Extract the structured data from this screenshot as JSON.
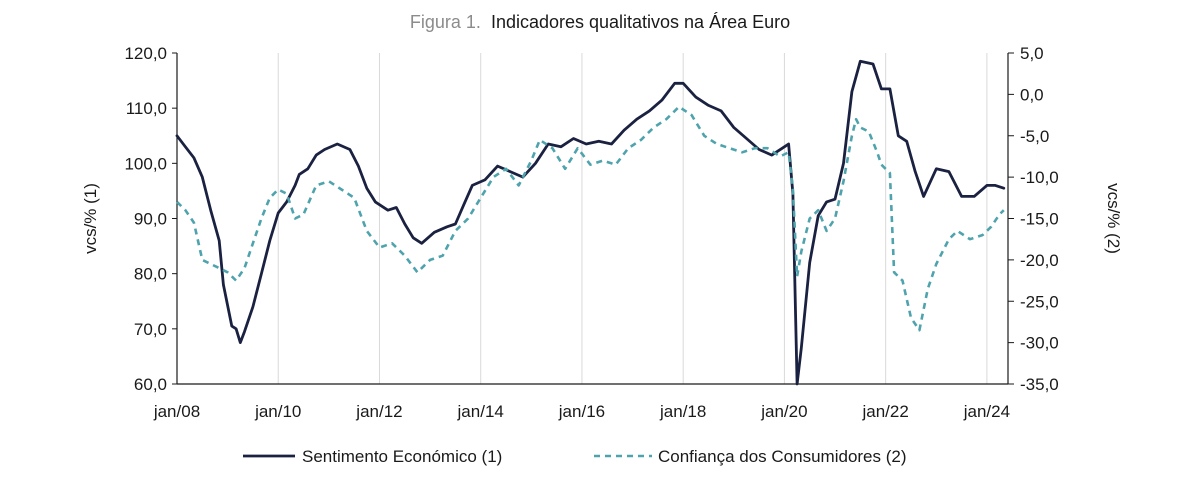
{
  "figure": {
    "prefix": "Figura 1.",
    "title": "Indicadores qualitativos na Área Euro"
  },
  "chart_data": {
    "type": "line",
    "x_tick_labels": [
      "jan/08",
      "jan/10",
      "jan/12",
      "jan/14",
      "jan/16",
      "jan/18",
      "jan/20",
      "jan/22",
      "jan/24"
    ],
    "left_axis": {
      "label": "vcs/% (1)",
      "range": [
        60,
        120
      ],
      "ticks": [
        "60,0",
        "70,0",
        "80,0",
        "90,0",
        "100,0",
        "110,0",
        "120,0"
      ]
    },
    "right_axis": {
      "label": "vcs/% (2)",
      "range": [
        -35,
        5
      ],
      "ticks": [
        "-35,0",
        "-30,0",
        "-25,0",
        "-20,0",
        "-15,0",
        "-10,0",
        "-5,0",
        "0,0",
        "5,0"
      ]
    },
    "grid": "vertical",
    "legend_position": "bottom",
    "series": [
      {
        "name": "Sentimento Económico (1)",
        "axis": "left",
        "color": "#1b2140",
        "style": "solid",
        "points": [
          [
            "2008-01",
            105.0
          ],
          [
            "2008-03",
            103.0
          ],
          [
            "2008-05",
            101.0
          ],
          [
            "2008-07",
            97.5
          ],
          [
            "2008-09",
            91.5
          ],
          [
            "2008-11",
            86.0
          ],
          [
            "2008-12",
            78.0
          ],
          [
            "2009-02",
            70.5
          ],
          [
            "2009-03",
            70.0
          ],
          [
            "2009-04",
            67.5
          ],
          [
            "2009-05",
            69.5
          ],
          [
            "2009-07",
            74.0
          ],
          [
            "2009-09",
            80.0
          ],
          [
            "2009-11",
            86.0
          ],
          [
            "2010-01",
            91.0
          ],
          [
            "2010-03",
            93.0
          ],
          [
            "2010-05",
            96.0
          ],
          [
            "2010-06",
            98.0
          ],
          [
            "2010-08",
            99.0
          ],
          [
            "2010-10",
            101.5
          ],
          [
            "2010-12",
            102.5
          ],
          [
            "2011-03",
            103.5
          ],
          [
            "2011-06",
            102.5
          ],
          [
            "2011-08",
            99.5
          ],
          [
            "2011-10",
            95.5
          ],
          [
            "2011-12",
            93.0
          ],
          [
            "2012-03",
            91.5
          ],
          [
            "2012-05",
            92.0
          ],
          [
            "2012-07",
            89.0
          ],
          [
            "2012-09",
            86.5
          ],
          [
            "2012-11",
            85.5
          ],
          [
            "2013-02",
            87.5
          ],
          [
            "2013-05",
            88.5
          ],
          [
            "2013-07",
            89.0
          ],
          [
            "2013-09",
            92.5
          ],
          [
            "2013-11",
            96.0
          ],
          [
            "2014-02",
            97.0
          ],
          [
            "2014-05",
            99.5
          ],
          [
            "2014-08",
            98.5
          ],
          [
            "2014-11",
            97.5
          ],
          [
            "2015-02",
            100.0
          ],
          [
            "2015-05",
            103.5
          ],
          [
            "2015-08",
            103.0
          ],
          [
            "2015-11",
            104.5
          ],
          [
            "2016-02",
            103.5
          ],
          [
            "2016-05",
            104.0
          ],
          [
            "2016-08",
            103.5
          ],
          [
            "2016-11",
            106.0
          ],
          [
            "2017-02",
            108.0
          ],
          [
            "2017-05",
            109.5
          ],
          [
            "2017-08",
            111.5
          ],
          [
            "2017-11",
            114.5
          ],
          [
            "2018-01",
            114.5
          ],
          [
            "2018-04",
            112.0
          ],
          [
            "2018-07",
            110.5
          ],
          [
            "2018-10",
            109.5
          ],
          [
            "2019-01",
            106.5
          ],
          [
            "2019-04",
            104.5
          ],
          [
            "2019-07",
            102.5
          ],
          [
            "2019-10",
            101.5
          ],
          [
            "2020-01",
            103.0
          ],
          [
            "2020-02",
            103.5
          ],
          [
            "2020-03",
            94.5
          ],
          [
            "2020-04",
            60.0
          ],
          [
            "2020-05",
            66.5
          ],
          [
            "2020-07",
            82.0
          ],
          [
            "2020-09",
            90.5
          ],
          [
            "2020-11",
            93.0
          ],
          [
            "2021-01",
            93.5
          ],
          [
            "2021-03",
            100.0
          ],
          [
            "2021-05",
            113.0
          ],
          [
            "2021-07",
            118.5
          ],
          [
            "2021-10",
            118.0
          ],
          [
            "2021-12",
            113.5
          ],
          [
            "2022-02",
            113.5
          ],
          [
            "2022-04",
            105.0
          ],
          [
            "2022-06",
            104.0
          ],
          [
            "2022-08",
            98.5
          ],
          [
            "2022-10",
            94.0
          ],
          [
            "2023-01",
            99.0
          ],
          [
            "2023-04",
            98.5
          ],
          [
            "2023-07",
            94.0
          ],
          [
            "2023-10",
            94.0
          ],
          [
            "2024-01",
            96.0
          ],
          [
            "2024-03",
            96.0
          ],
          [
            "2024-05",
            95.5
          ]
        ]
      },
      {
        "name": "Confiança dos Consumidores (2)",
        "axis": "right",
        "color": "#4fa3ad",
        "style": "dashed",
        "points": [
          [
            "2008-01",
            -13.0
          ],
          [
            "2008-03",
            -14.0
          ],
          [
            "2008-05",
            -15.5
          ],
          [
            "2008-07",
            -20.0
          ],
          [
            "2008-09",
            -20.5
          ],
          [
            "2008-11",
            -21.0
          ],
          [
            "2009-01",
            -21.5
          ],
          [
            "2009-03",
            -22.5
          ],
          [
            "2009-05",
            -21.0
          ],
          [
            "2009-07",
            -18.0
          ],
          [
            "2009-09",
            -15.0
          ],
          [
            "2009-11",
            -12.5
          ],
          [
            "2010-01",
            -11.5
          ],
          [
            "2010-03",
            -12.0
          ],
          [
            "2010-05",
            -15.0
          ],
          [
            "2010-07",
            -14.5
          ],
          [
            "2010-10",
            -11.0
          ],
          [
            "2011-01",
            -10.5
          ],
          [
            "2011-04",
            -11.5
          ],
          [
            "2011-07",
            -12.5
          ],
          [
            "2011-10",
            -16.5
          ],
          [
            "2012-01",
            -18.5
          ],
          [
            "2012-04",
            -18.0
          ],
          [
            "2012-07",
            -19.5
          ],
          [
            "2012-10",
            -21.5
          ],
          [
            "2013-01",
            -20.0
          ],
          [
            "2013-04",
            -19.5
          ],
          [
            "2013-07",
            -16.5
          ],
          [
            "2013-10",
            -15.0
          ],
          [
            "2014-01",
            -12.5
          ],
          [
            "2014-04",
            -10.0
          ],
          [
            "2014-07",
            -9.0
          ],
          [
            "2014-10",
            -11.0
          ],
          [
            "2015-01",
            -8.0
          ],
          [
            "2015-03",
            -5.5
          ],
          [
            "2015-06",
            -6.5
          ],
          [
            "2015-09",
            -9.0
          ],
          [
            "2015-12",
            -6.5
          ],
          [
            "2016-03",
            -8.5
          ],
          [
            "2016-06",
            -8.0
          ],
          [
            "2016-09",
            -8.5
          ],
          [
            "2016-12",
            -6.5
          ],
          [
            "2017-03",
            -5.5
          ],
          [
            "2017-06",
            -4.0
          ],
          [
            "2017-09",
            -3.0
          ],
          [
            "2017-12",
            -1.5
          ],
          [
            "2018-03",
            -2.5
          ],
          [
            "2018-06",
            -5.0
          ],
          [
            "2018-09",
            -6.0
          ],
          [
            "2018-12",
            -6.5
          ],
          [
            "2019-03",
            -7.0
          ],
          [
            "2019-06",
            -6.5
          ],
          [
            "2019-09",
            -6.5
          ],
          [
            "2019-12",
            -7.5
          ],
          [
            "2020-02",
            -7.0
          ],
          [
            "2020-03",
            -11.5
          ],
          [
            "2020-04",
            -22.0
          ],
          [
            "2020-05",
            -19.0
          ],
          [
            "2020-07",
            -15.0
          ],
          [
            "2020-09",
            -14.0
          ],
          [
            "2020-11",
            -16.5
          ],
          [
            "2021-01",
            -15.0
          ],
          [
            "2021-03",
            -10.5
          ],
          [
            "2021-05",
            -5.0
          ],
          [
            "2021-06",
            -3.0
          ],
          [
            "2021-07",
            -4.0
          ],
          [
            "2021-09",
            -4.5
          ],
          [
            "2021-11",
            -7.0
          ],
          [
            "2021-12",
            -8.5
          ],
          [
            "2022-02",
            -9.5
          ],
          [
            "2022-03",
            -21.5
          ],
          [
            "2022-05",
            -22.5
          ],
          [
            "2022-07",
            -27.0
          ],
          [
            "2022-09",
            -28.5
          ],
          [
            "2022-11",
            -23.5
          ],
          [
            "2023-01",
            -20.5
          ],
          [
            "2023-04",
            -17.5
          ],
          [
            "2023-06",
            -16.5
          ],
          [
            "2023-09",
            -17.5
          ],
          [
            "2023-12",
            -17.0
          ],
          [
            "2024-02",
            -16.0
          ],
          [
            "2024-04",
            -14.5
          ],
          [
            "2024-05",
            -14.0
          ]
        ]
      }
    ]
  }
}
